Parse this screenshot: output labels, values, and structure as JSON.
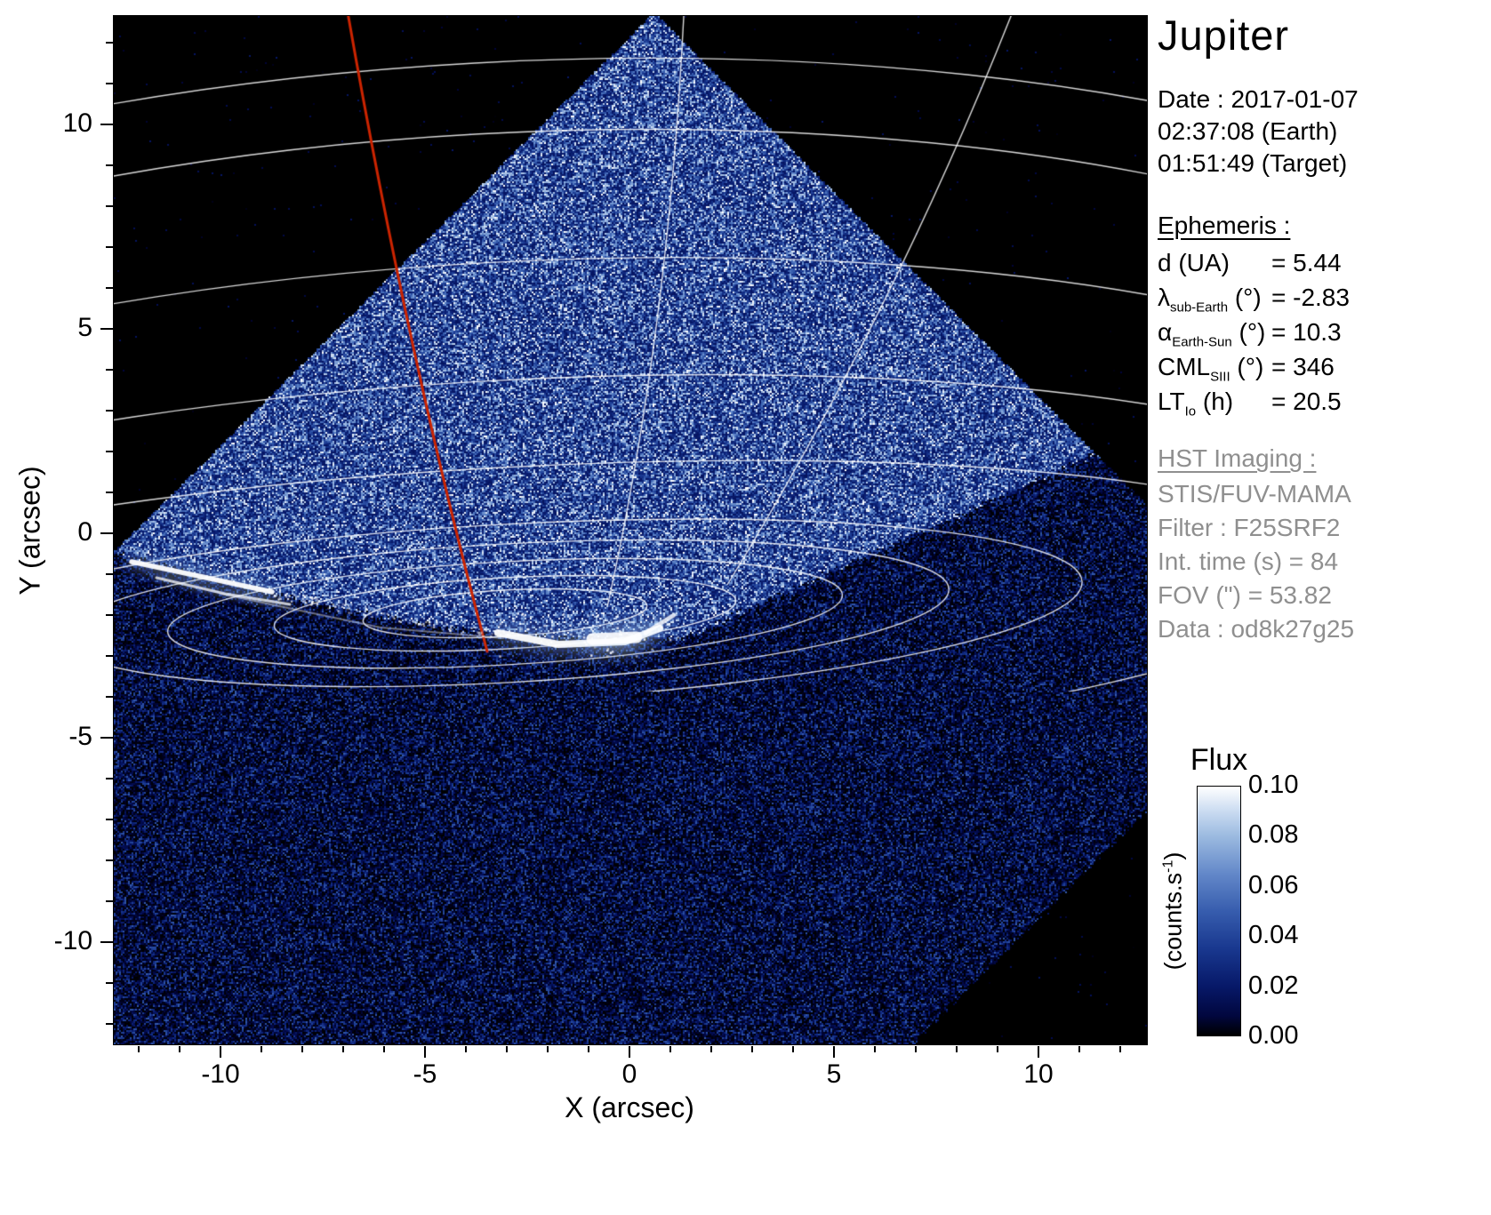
{
  "title": "Jupiter",
  "date_block": {
    "date": "Date : 2017-01-07",
    "earth_time": "02:37:08 (Earth)",
    "target_time": "01:51:49 (Target)"
  },
  "ephemeris": {
    "header": "Ephemeris :",
    "lines": [
      {
        "label": "d (UA)",
        "sub": "",
        "unit": "",
        "value": "= 5.44"
      },
      {
        "label": "λ",
        "sub": "sub-Earth",
        "unit": "(°)",
        "value": "= -2.83"
      },
      {
        "label": "α",
        "sub": "Earth-Sun",
        "unit": "(°)",
        "value": "= 10.3"
      },
      {
        "label": "CML",
        "sub": "SIII",
        "unit": "(°)",
        "value": "= 346"
      },
      {
        "label": "LT",
        "sub": "Io",
        "unit": "(h)",
        "value": "= 20.5"
      }
    ]
  },
  "hst": {
    "header": "HST Imaging :",
    "lines": [
      "STIS/FUV-MAMA",
      "Filter : F25SRF2",
      "Int. time (s) = 84",
      "FOV (\") = 53.82",
      "Data : od8k27g25"
    ]
  },
  "axes": {
    "xlabel": "X (arcsec)",
    "ylabel": "Y (arcsec)",
    "xticks": [
      "-10",
      "-5",
      "0",
      "5",
      "10"
    ],
    "yticks": [
      "10",
      "5",
      "0",
      "-5",
      "-10"
    ]
  },
  "colorbar": {
    "title": "Flux",
    "unit_pre": "(counts.s",
    "unit_sup": "-1",
    "unit_post": ")",
    "tick_labels": [
      "0.10",
      "0.08",
      "0.06",
      "0.04",
      "0.02",
      "0.00"
    ]
  },
  "chart_data": {
    "type": "heatmap",
    "title": "Jupiter",
    "xlabel": "X (arcsec)",
    "ylabel": "Y (arcsec)",
    "xlim": [
      -12.6,
      12.7
    ],
    "ylim": [
      -12.5,
      12.7
    ],
    "xticks": [
      -10,
      -5,
      0,
      5,
      10
    ],
    "yticks": [
      -10,
      -5,
      0,
      5,
      10
    ],
    "colorbar": {
      "label": "Flux (counts.s-1)",
      "min": 0.0,
      "max": 0.1,
      "ticks": [
        0.0,
        0.02,
        0.04,
        0.06,
        0.08,
        0.1
      ],
      "colormap": "black -> dark blue -> blue -> white"
    },
    "content": "Far-UV image of Jupiter's north polar region. A diamond-shaped detector field (apex near x=0.6, y=12.7 arcsec) is filled with speckled blue dayglow; the region outside the detector is black. A white planetary latitude/longitude graticule curves across the upper half and bunches toward the upper-right limb. Bright white auroral oval emission lies along y = -1 to -3 arcsec between x = -12.5 and 0.8 arcsec, brightest near (-3.5, -2.3). A red meridian line runs from (-6.9, 12.7) at the top, curving to (-3.5, -2.5) near the aurora. The lower half of the field is near-black with faint noise.",
    "features": {
      "detector_apex_arcsec": [
        0.6,
        12.7
      ],
      "aurora_x_range_arcsec": [
        -12.5,
        0.8
      ],
      "aurora_y_range_arcsec": [
        -3.1,
        -0.7
      ],
      "red_line_top_arcsec": [
        -6.9,
        12.7
      ],
      "red_line_bottom_arcsec": [
        -3.5,
        -2.5
      ]
    }
  }
}
